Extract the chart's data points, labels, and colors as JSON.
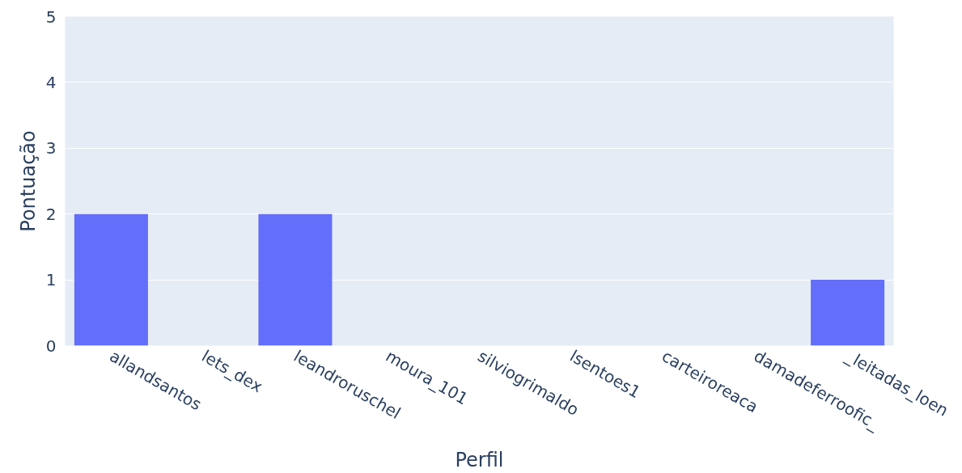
{
  "chart_data": {
    "type": "bar",
    "xlabel": "Perfil",
    "ylabel": "Pontuação",
    "categories": [
      "allandsantos",
      "lets_dex",
      "leandroruschel",
      "moura_101",
      "silviogrimaldo",
      "lsentoes1",
      "carteiroreaca",
      "damadeferroofic_",
      "_leitadas_loen"
    ],
    "values": [
      2,
      0,
      2,
      0,
      0,
      0,
      0,
      0,
      1
    ],
    "color": "#636efa",
    "ylim": [
      0,
      5
    ],
    "yticks": [
      0,
      1,
      2,
      3,
      4,
      5
    ],
    "grid": "y"
  }
}
